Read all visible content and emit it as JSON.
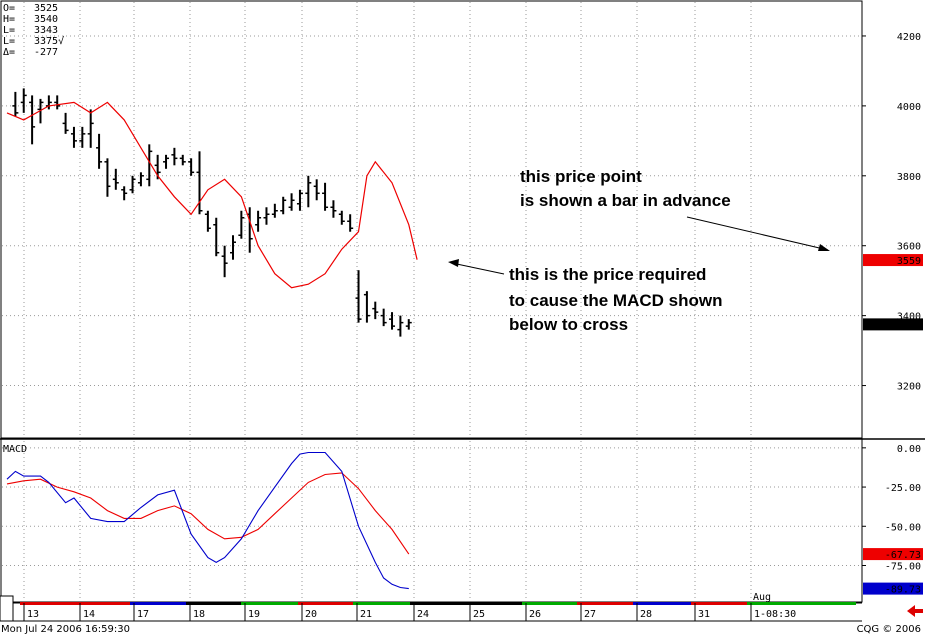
{
  "ohlc_box": [
    {
      "label": "O=",
      "value": "3525"
    },
    {
      "label": "H=",
      "value": "3540"
    },
    {
      "label": "L=",
      "value": "3343"
    },
    {
      "label": "L=",
      "value": "3375√"
    },
    {
      "label": "Δ=",
      "value": "-277"
    }
  ],
  "annotations": {
    "price_point": [
      "this price point",
      "is shown a bar in advance"
    ],
    "required": [
      "this is the price required",
      "to cause the MACD shown",
      "below to cross"
    ]
  },
  "status": {
    "left": "Mon Jul 24 2006 16:59:30",
    "right": "CQG © 2006"
  },
  "colors": {
    "price": "#000000",
    "ma": "#ee0000",
    "macd": "#0000cc",
    "signal": "#ee0000",
    "grid": "#999999"
  },
  "chart_data": [
    {
      "type": "ohlc",
      "ylim": [
        3050,
        4300
      ],
      "yticks": [
        "4200",
        "4000",
        "3800",
        "3600",
        "3400",
        "3200"
      ],
      "markers": [
        {
          "value": "3559",
          "color": "#ee0000"
        },
        {
          "value": "3375",
          "color": "#000000"
        }
      ],
      "bars": [
        {
          "x": 1,
          "h": 4040,
          "l": 3970,
          "o": 4000,
          "c": 3980
        },
        {
          "x": 2,
          "h": 4050,
          "l": 3980,
          "o": 4010,
          "c": 4030
        },
        {
          "x": 3,
          "h": 4030,
          "l": 3890,
          "o": 4010,
          "c": 3940
        },
        {
          "x": 4,
          "h": 4020,
          "l": 3950,
          "o": 3990,
          "c": 4010
        },
        {
          "x": 5,
          "h": 4030,
          "l": 3990,
          "o": 4000,
          "c": 4010
        },
        {
          "x": 6,
          "h": 4030,
          "l": 3990,
          "o": 4010,
          "c": 4000
        },
        {
          "x": 7,
          "h": 3980,
          "l": 3920,
          "o": 3950,
          "c": 3930
        },
        {
          "x": 8,
          "h": 3940,
          "l": 3880,
          "o": 3920,
          "c": 3900
        },
        {
          "x": 9,
          "h": 3940,
          "l": 3880,
          "o": 3900,
          "c": 3920
        },
        {
          "x": 10,
          "h": 3990,
          "l": 3880,
          "o": 3920,
          "c": 3950
        },
        {
          "x": 11,
          "h": 3920,
          "l": 3820,
          "o": 3880,
          "c": 3840
        },
        {
          "x": 12,
          "h": 3850,
          "l": 3740,
          "o": 3840,
          "c": 3770
        },
        {
          "x": 13,
          "h": 3820,
          "l": 3760,
          "o": 3790,
          "c": 3780
        },
        {
          "x": 14,
          "h": 3770,
          "l": 3730,
          "o": 3760,
          "c": 3750
        },
        {
          "x": 15,
          "h": 3800,
          "l": 3750,
          "o": 3760,
          "c": 3790
        },
        {
          "x": 16,
          "h": 3810,
          "l": 3770,
          "o": 3780,
          "c": 3800
        },
        {
          "x": 17,
          "h": 3890,
          "l": 3770,
          "o": 3790,
          "c": 3870
        },
        {
          "x": 18,
          "h": 3860,
          "l": 3790,
          "o": 3830,
          "c": 3810
        },
        {
          "x": 19,
          "h": 3860,
          "l": 3820,
          "o": 3840,
          "c": 3850
        },
        {
          "x": 20,
          "h": 3880,
          "l": 3830,
          "o": 3860,
          "c": 3850
        },
        {
          "x": 21,
          "h": 3860,
          "l": 3830,
          "o": 3850,
          "c": 3840
        },
        {
          "x": 22,
          "h": 3850,
          "l": 3800,
          "o": 3840,
          "c": 3810
        },
        {
          "x": 23,
          "h": 3870,
          "l": 3690,
          "o": 3810,
          "c": 3700
        },
        {
          "x": 24,
          "h": 3700,
          "l": 3640,
          "o": 3690,
          "c": 3650
        },
        {
          "x": 25,
          "h": 3680,
          "l": 3570,
          "o": 3660,
          "c": 3580
        },
        {
          "x": 26,
          "h": 3600,
          "l": 3510,
          "o": 3570,
          "c": 3550
        },
        {
          "x": 27,
          "h": 3630,
          "l": 3560,
          "o": 3580,
          "c": 3610
        },
        {
          "x": 28,
          "h": 3700,
          "l": 3620,
          "o": 3630,
          "c": 3680
        },
        {
          "x": 29,
          "h": 3710,
          "l": 3580,
          "o": 3690,
          "c": 3620
        },
        {
          "x": 30,
          "h": 3700,
          "l": 3640,
          "o": 3660,
          "c": 3680
        },
        {
          "x": 31,
          "h": 3710,
          "l": 3660,
          "o": 3680,
          "c": 3690
        },
        {
          "x": 32,
          "h": 3720,
          "l": 3680,
          "o": 3690,
          "c": 3700
        },
        {
          "x": 33,
          "h": 3740,
          "l": 3690,
          "o": 3700,
          "c": 3730
        },
        {
          "x": 34,
          "h": 3750,
          "l": 3700,
          "o": 3710,
          "c": 3730
        },
        {
          "x": 35,
          "h": 3760,
          "l": 3700,
          "o": 3720,
          "c": 3750
        },
        {
          "x": 36,
          "h": 3800,
          "l": 3710,
          "o": 3750,
          "c": 3780
        },
        {
          "x": 37,
          "h": 3790,
          "l": 3730,
          "o": 3770,
          "c": 3750
        },
        {
          "x": 38,
          "h": 3780,
          "l": 3700,
          "o": 3750,
          "c": 3710
        },
        {
          "x": 39,
          "h": 3730,
          "l": 3680,
          "o": 3710,
          "c": 3700
        },
        {
          "x": 40,
          "h": 3700,
          "l": 3660,
          "o": 3690,
          "c": 3670
        },
        {
          "x": 41,
          "h": 3690,
          "l": 3640,
          "o": 3670,
          "c": 3650
        },
        {
          "x": 42,
          "h": 3530,
          "l": 3380,
          "o": 3450,
          "c": 3390
        },
        {
          "x": 43,
          "h": 3470,
          "l": 3380,
          "o": 3460,
          "c": 3400
        },
        {
          "x": 44,
          "h": 3440,
          "l": 3390,
          "o": 3420,
          "c": 3410
        },
        {
          "x": 45,
          "h": 3420,
          "l": 3370,
          "o": 3400,
          "c": 3380
        },
        {
          "x": 46,
          "h": 3410,
          "l": 3360,
          "o": 3390,
          "c": 3370
        },
        {
          "x": 47,
          "h": 3400,
          "l": 3340,
          "o": 3360,
          "c": 3380
        },
        {
          "x": 48,
          "h": 3390,
          "l": 3360,
          "o": 3370,
          "c": 3380
        }
      ],
      "ma": [
        [
          0,
          3980
        ],
        [
          2,
          3960
        ],
        [
          5,
          4000
        ],
        [
          8,
          4010
        ],
        [
          10,
          3980
        ],
        [
          12,
          4010
        ],
        [
          14,
          3960
        ],
        [
          16,
          3880
        ],
        [
          18,
          3800
        ],
        [
          20,
          3740
        ],
        [
          22,
          3690
        ],
        [
          24,
          3760
        ],
        [
          26,
          3790
        ],
        [
          28,
          3740
        ],
        [
          30,
          3600
        ],
        [
          32,
          3520
        ],
        [
          34,
          3480
        ],
        [
          36,
          3490
        ],
        [
          38,
          3520
        ],
        [
          40,
          3590
        ],
        [
          42,
          3640
        ],
        [
          43,
          3800
        ],
        [
          44,
          3840
        ],
        [
          46,
          3780
        ],
        [
          48,
          3660
        ],
        [
          49,
          3560
        ]
      ]
    },
    {
      "type": "line",
      "title": "MACD",
      "ylim": [
        -97,
        5
      ],
      "yticks": [
        "0.00",
        "-25.00",
        "-50.00",
        "-75.00"
      ],
      "markers": [
        {
          "value": "-67.73",
          "color": "#ee0000"
        },
        {
          "value": "-89.73",
          "color": "#0000cc"
        }
      ],
      "series": [
        {
          "values": [
            [
              0,
              -20
            ],
            [
              1,
              -15
            ],
            [
              2,
              -18
            ],
            [
              3,
              -18
            ],
            [
              4,
              -18
            ],
            [
              5,
              -22
            ],
            [
              7,
              -35
            ],
            [
              8,
              -32
            ],
            [
              10,
              -45
            ],
            [
              12,
              -47
            ],
            [
              14,
              -47
            ],
            [
              16,
              -38
            ],
            [
              18,
              -30
            ],
            [
              20,
              -27
            ],
            [
              22,
              -55
            ],
            [
              24,
              -70
            ],
            [
              25,
              -73
            ],
            [
              26,
              -70
            ],
            [
              28,
              -58
            ],
            [
              30,
              -40
            ],
            [
              32,
              -25
            ],
            [
              34,
              -10
            ],
            [
              35,
              -4
            ],
            [
              36,
              -3
            ],
            [
              38,
              -3
            ],
            [
              40,
              -15
            ],
            [
              42,
              -50
            ],
            [
              44,
              -73
            ],
            [
              45,
              -83
            ],
            [
              46,
              -87
            ],
            [
              47,
              -89
            ],
            [
              48,
              -89.73
            ]
          ]
        },
        {
          "values": [
            [
              0,
              -23
            ],
            [
              2,
              -21
            ],
            [
              4,
              -20
            ],
            [
              6,
              -25
            ],
            [
              8,
              -28
            ],
            [
              10,
              -32
            ],
            [
              12,
              -40
            ],
            [
              14,
              -45
            ],
            [
              16,
              -45
            ],
            [
              18,
              -40
            ],
            [
              20,
              -37
            ],
            [
              22,
              -42
            ],
            [
              24,
              -52
            ],
            [
              26,
              -58
            ],
            [
              28,
              -57
            ],
            [
              30,
              -52
            ],
            [
              32,
              -42
            ],
            [
              34,
              -32
            ],
            [
              36,
              -22
            ],
            [
              38,
              -17
            ],
            [
              40,
              -16
            ],
            [
              42,
              -26
            ],
            [
              44,
              -40
            ],
            [
              46,
              -52
            ],
            [
              48,
              -67.73
            ]
          ]
        }
      ]
    }
  ],
  "xaxis": {
    "labels": [
      "13",
      "14",
      "17",
      "18",
      "19",
      "20",
      "21",
      "24",
      "25",
      "26",
      "27",
      "28",
      "31",
      "1-08:30"
    ],
    "month": "Aug"
  }
}
